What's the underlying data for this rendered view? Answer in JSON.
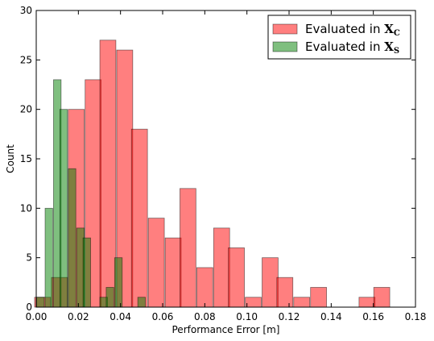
{
  "chart_data": {
    "type": "bar",
    "xlabel": "Performance Error [m]",
    "ylabel": "Count",
    "xlim": [
      0.0,
      0.18
    ],
    "ylim": [
      0,
      30
    ],
    "xticks": [
      0.0,
      0.02,
      0.04,
      0.06,
      0.08,
      0.1,
      0.12,
      0.14,
      0.16,
      0.18
    ],
    "xtick_labels": [
      "0.00",
      "0.02",
      "0.04",
      "0.06",
      "0.08",
      "0.10",
      "0.12",
      "0.14",
      "0.16",
      "0.18"
    ],
    "yticks": [
      0,
      5,
      10,
      15,
      20,
      25,
      30
    ],
    "ytick_labels": [
      "0",
      "5",
      "10",
      "15",
      "20",
      "25",
      "30"
    ],
    "legend_placement": "top-right",
    "grid": false,
    "series": [
      {
        "name": "Evaluated in X_C",
        "legend_prefix": "Evaluated in ",
        "legend_symbol": "X",
        "legend_subscript": "C",
        "color": "#ff0000",
        "opacity": 0.5,
        "bin_width": 0.0076,
        "x": [
          0.003,
          0.011,
          0.019,
          0.027,
          0.034,
          0.042,
          0.049,
          0.057,
          0.065,
          0.072,
          0.08,
          0.088,
          0.095,
          0.103,
          0.111,
          0.118,
          0.126,
          0.134,
          0.141,
          0.149,
          0.157,
          0.164
        ],
        "values": [
          1,
          3,
          20,
          23,
          27,
          26,
          18,
          9,
          7,
          12,
          4,
          8,
          6,
          1,
          5,
          3,
          1,
          2,
          0,
          0,
          1,
          2
        ]
      },
      {
        "name": "Evaluated in X_S",
        "legend_prefix": "Evaluated in ",
        "legend_symbol": "X",
        "legend_subscript": "S",
        "color": "#008000",
        "opacity": 0.5,
        "bin_width": 0.0036,
        "x": [
          0.002,
          0.006,
          0.01,
          0.013,
          0.017,
          0.021,
          0.024,
          0.028,
          0.032,
          0.035,
          0.039,
          0.043,
          0.046,
          0.05
        ],
        "values": [
          1,
          10,
          23,
          20,
          14,
          8,
          7,
          0,
          1,
          2,
          5,
          0,
          0,
          1
        ]
      }
    ]
  }
}
